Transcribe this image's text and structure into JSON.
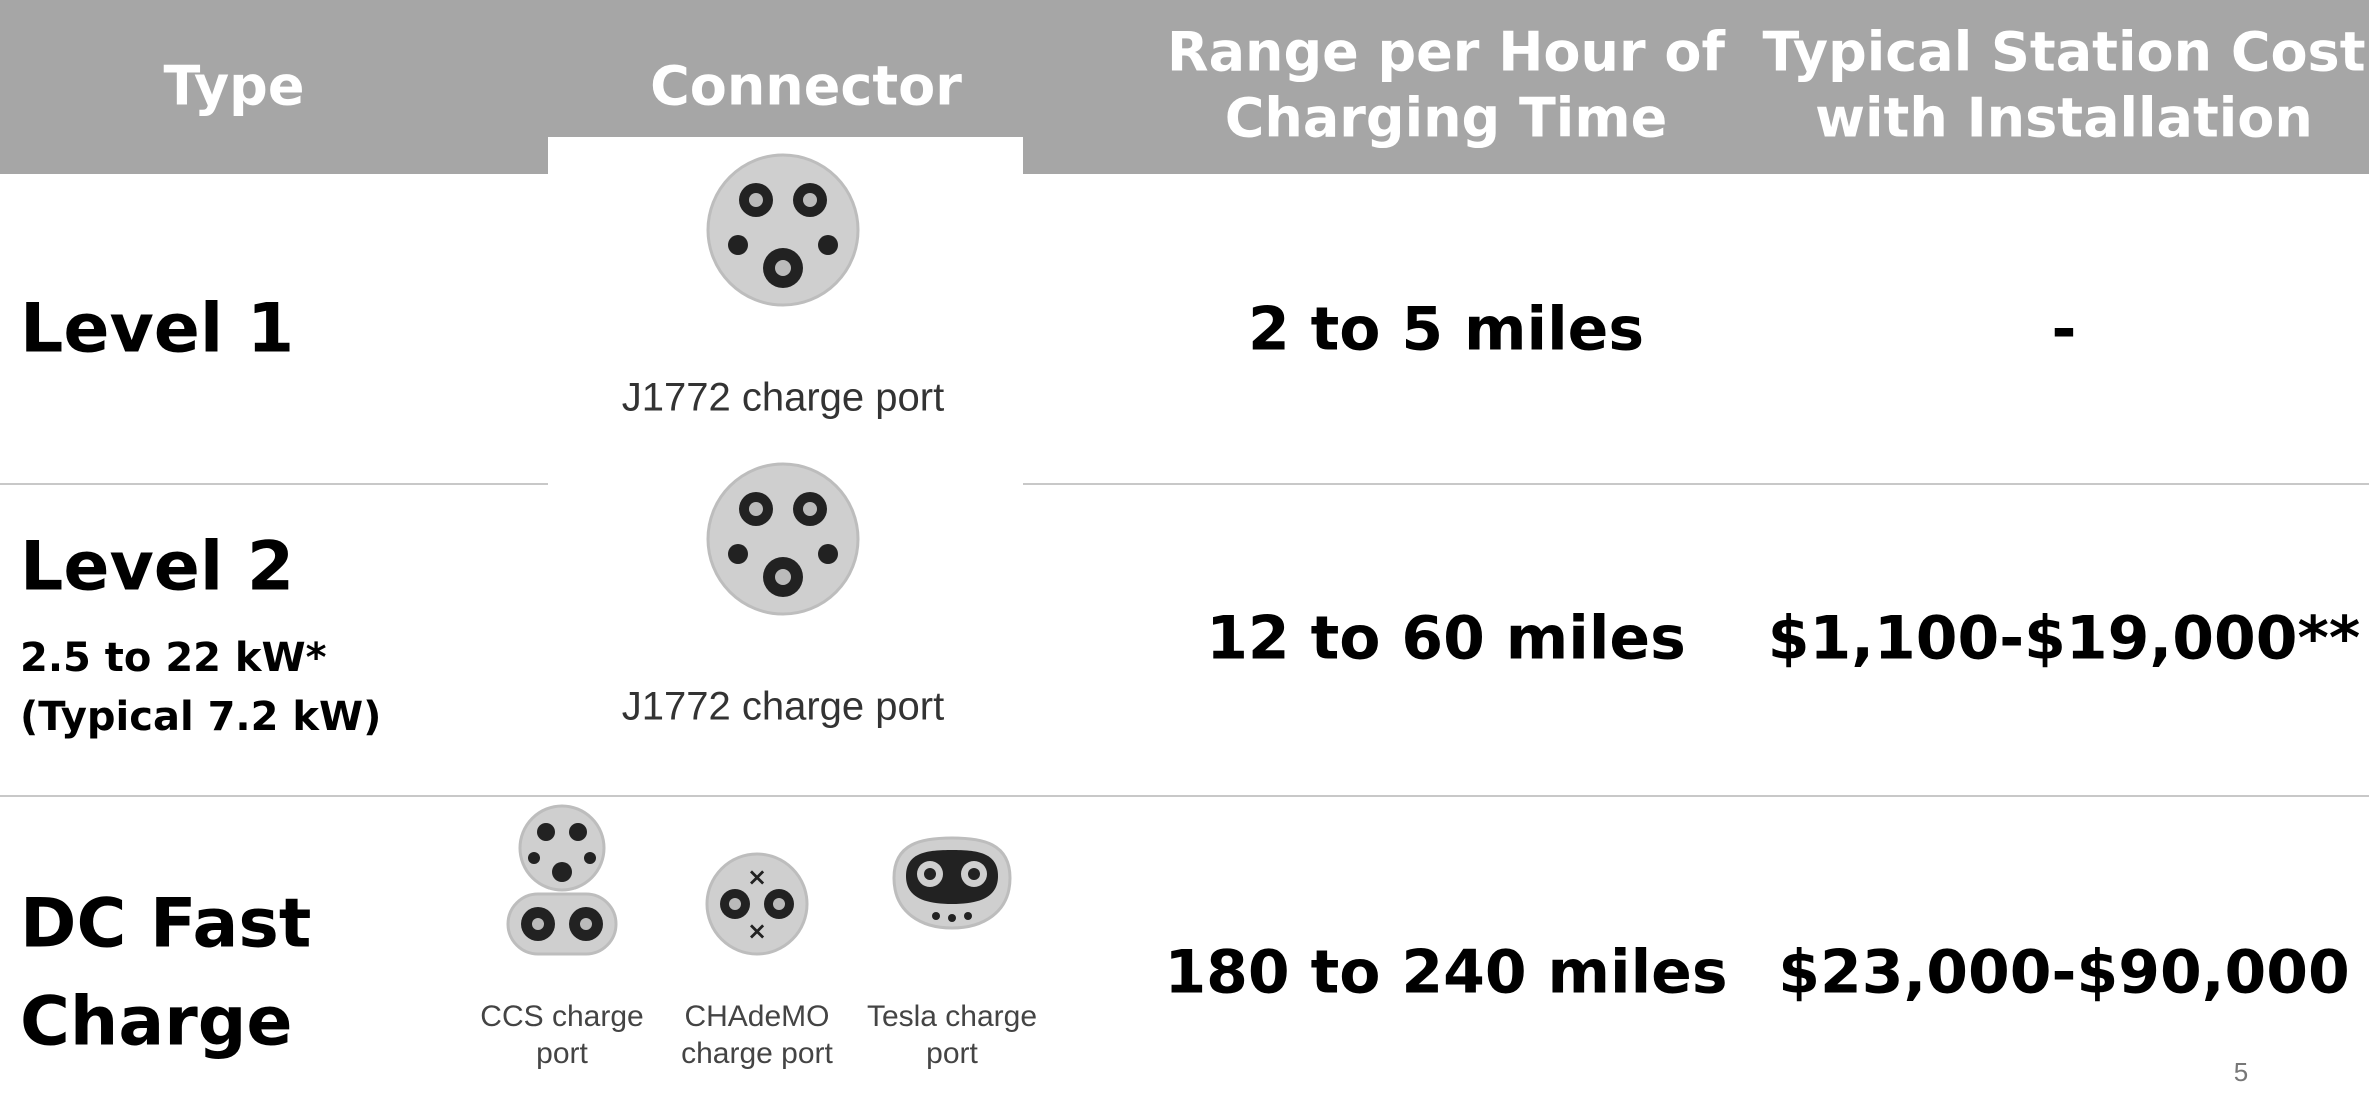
{
  "header": {
    "columns": [
      [
        "Type"
      ],
      [
        "Connector"
      ],
      [
        "Range per Hour of",
        "Charging Time"
      ],
      [
        "Typical Station Cost",
        "with Installation"
      ]
    ]
  },
  "rows": [
    {
      "type": [
        "Level 1"
      ],
      "notes": [],
      "connectors": [
        [
          "J1772 charge port"
        ]
      ],
      "range": "2 to 5 miles",
      "cost": "-"
    },
    {
      "type": [
        "Level 2"
      ],
      "notes": [
        "2.5 to 22 kW*",
        "(Typical 7.2 kW)"
      ],
      "connectors": [
        [
          "J1772 charge port"
        ]
      ],
      "range": "12 to 60 miles",
      "cost": "$1,100-$19,000**"
    },
    {
      "type": [
        "DC Fast",
        "Charge"
      ],
      "notes": [],
      "connectors": [
        [
          "CCS charge",
          "port"
        ],
        [
          "CHAdeMO",
          "charge port"
        ],
        [
          "Tesla charge",
          "port"
        ]
      ],
      "range": "180 to 240 miles",
      "cost": "$23,000-$90,000"
    }
  ],
  "page_number": "5"
}
